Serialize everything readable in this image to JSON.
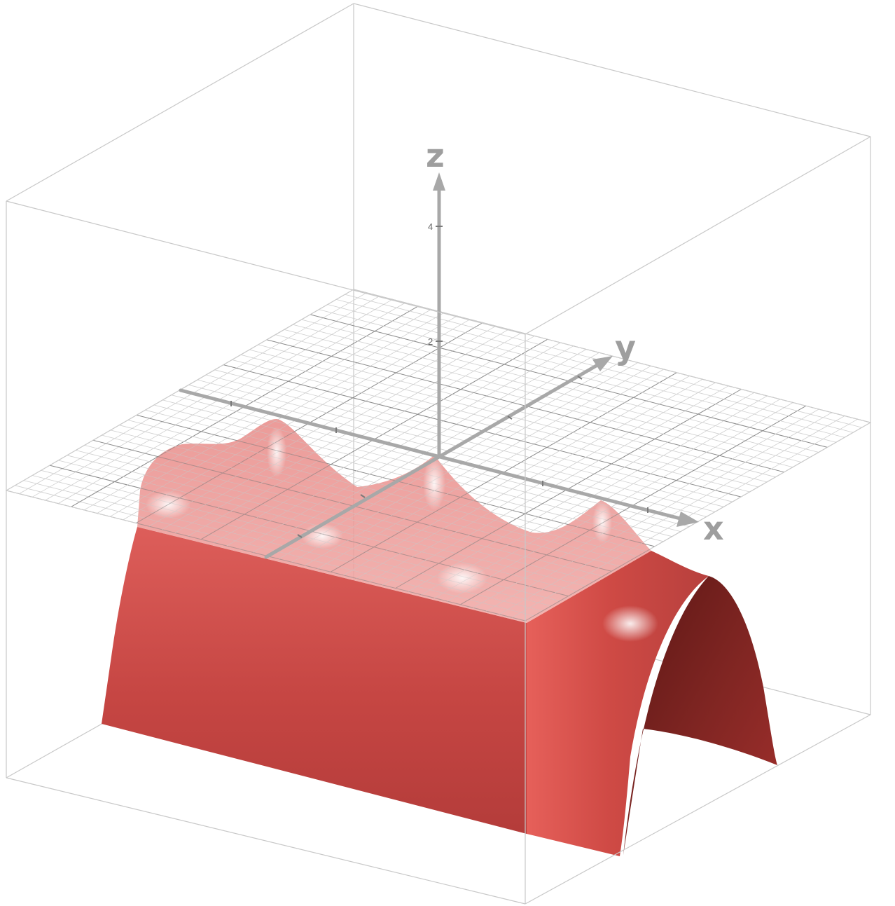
{
  "graph": {
    "axes": {
      "x_label": "x",
      "y_label": "y",
      "z_label": "z"
    },
    "z_tick_labels": [
      "2",
      "4"
    ],
    "surface_color": "#d9524f",
    "surface_highlight": "#f7b3b0",
    "surface_shadow": "#7a201e",
    "axis_color": "#a8a8a8",
    "box_color": "#c8c8c8",
    "grid_color": "#cfcfcf",
    "grid_major_color": "#8a8a8a"
  }
}
